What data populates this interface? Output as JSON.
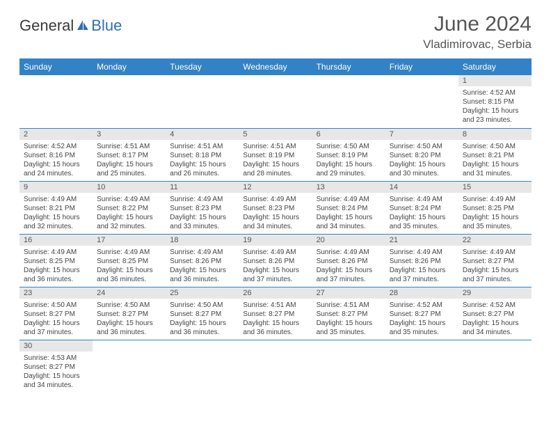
{
  "logo": {
    "dark": "General",
    "blue": "Blue"
  },
  "title": "June 2024",
  "location": "Vladimirovac, Serbia",
  "colors": {
    "header_bg": "#3182c7",
    "header_text": "#ffffff",
    "daynum_bg": "#e7e7e7",
    "row_border": "#3182c7",
    "logo_dark": "#3a3a3a",
    "logo_blue": "#2f6fb5",
    "text": "#444"
  },
  "weekdays": [
    "Sunday",
    "Monday",
    "Tuesday",
    "Wednesday",
    "Thursday",
    "Friday",
    "Saturday"
  ],
  "weeks": [
    [
      null,
      null,
      null,
      null,
      null,
      null,
      {
        "n": "1",
        "sr": "Sunrise: 4:52 AM",
        "ss": "Sunset: 8:15 PM",
        "d1": "Daylight: 15 hours",
        "d2": "and 23 minutes."
      }
    ],
    [
      {
        "n": "2",
        "sr": "Sunrise: 4:52 AM",
        "ss": "Sunset: 8:16 PM",
        "d1": "Daylight: 15 hours",
        "d2": "and 24 minutes."
      },
      {
        "n": "3",
        "sr": "Sunrise: 4:51 AM",
        "ss": "Sunset: 8:17 PM",
        "d1": "Daylight: 15 hours",
        "d2": "and 25 minutes."
      },
      {
        "n": "4",
        "sr": "Sunrise: 4:51 AM",
        "ss": "Sunset: 8:18 PM",
        "d1": "Daylight: 15 hours",
        "d2": "and 26 minutes."
      },
      {
        "n": "5",
        "sr": "Sunrise: 4:51 AM",
        "ss": "Sunset: 8:19 PM",
        "d1": "Daylight: 15 hours",
        "d2": "and 28 minutes."
      },
      {
        "n": "6",
        "sr": "Sunrise: 4:50 AM",
        "ss": "Sunset: 8:19 PM",
        "d1": "Daylight: 15 hours",
        "d2": "and 29 minutes."
      },
      {
        "n": "7",
        "sr": "Sunrise: 4:50 AM",
        "ss": "Sunset: 8:20 PM",
        "d1": "Daylight: 15 hours",
        "d2": "and 30 minutes."
      },
      {
        "n": "8",
        "sr": "Sunrise: 4:50 AM",
        "ss": "Sunset: 8:21 PM",
        "d1": "Daylight: 15 hours",
        "d2": "and 31 minutes."
      }
    ],
    [
      {
        "n": "9",
        "sr": "Sunrise: 4:49 AM",
        "ss": "Sunset: 8:21 PM",
        "d1": "Daylight: 15 hours",
        "d2": "and 32 minutes."
      },
      {
        "n": "10",
        "sr": "Sunrise: 4:49 AM",
        "ss": "Sunset: 8:22 PM",
        "d1": "Daylight: 15 hours",
        "d2": "and 32 minutes."
      },
      {
        "n": "11",
        "sr": "Sunrise: 4:49 AM",
        "ss": "Sunset: 8:23 PM",
        "d1": "Daylight: 15 hours",
        "d2": "and 33 minutes."
      },
      {
        "n": "12",
        "sr": "Sunrise: 4:49 AM",
        "ss": "Sunset: 8:23 PM",
        "d1": "Daylight: 15 hours",
        "d2": "and 34 minutes."
      },
      {
        "n": "13",
        "sr": "Sunrise: 4:49 AM",
        "ss": "Sunset: 8:24 PM",
        "d1": "Daylight: 15 hours",
        "d2": "and 34 minutes."
      },
      {
        "n": "14",
        "sr": "Sunrise: 4:49 AM",
        "ss": "Sunset: 8:24 PM",
        "d1": "Daylight: 15 hours",
        "d2": "and 35 minutes."
      },
      {
        "n": "15",
        "sr": "Sunrise: 4:49 AM",
        "ss": "Sunset: 8:25 PM",
        "d1": "Daylight: 15 hours",
        "d2": "and 35 minutes."
      }
    ],
    [
      {
        "n": "16",
        "sr": "Sunrise: 4:49 AM",
        "ss": "Sunset: 8:25 PM",
        "d1": "Daylight: 15 hours",
        "d2": "and 36 minutes."
      },
      {
        "n": "17",
        "sr": "Sunrise: 4:49 AM",
        "ss": "Sunset: 8:25 PM",
        "d1": "Daylight: 15 hours",
        "d2": "and 36 minutes."
      },
      {
        "n": "18",
        "sr": "Sunrise: 4:49 AM",
        "ss": "Sunset: 8:26 PM",
        "d1": "Daylight: 15 hours",
        "d2": "and 36 minutes."
      },
      {
        "n": "19",
        "sr": "Sunrise: 4:49 AM",
        "ss": "Sunset: 8:26 PM",
        "d1": "Daylight: 15 hours",
        "d2": "and 37 minutes."
      },
      {
        "n": "20",
        "sr": "Sunrise: 4:49 AM",
        "ss": "Sunset: 8:26 PM",
        "d1": "Daylight: 15 hours",
        "d2": "and 37 minutes."
      },
      {
        "n": "21",
        "sr": "Sunrise: 4:49 AM",
        "ss": "Sunset: 8:26 PM",
        "d1": "Daylight: 15 hours",
        "d2": "and 37 minutes."
      },
      {
        "n": "22",
        "sr": "Sunrise: 4:49 AM",
        "ss": "Sunset: 8:27 PM",
        "d1": "Daylight: 15 hours",
        "d2": "and 37 minutes."
      }
    ],
    [
      {
        "n": "23",
        "sr": "Sunrise: 4:50 AM",
        "ss": "Sunset: 8:27 PM",
        "d1": "Daylight: 15 hours",
        "d2": "and 37 minutes."
      },
      {
        "n": "24",
        "sr": "Sunrise: 4:50 AM",
        "ss": "Sunset: 8:27 PM",
        "d1": "Daylight: 15 hours",
        "d2": "and 36 minutes."
      },
      {
        "n": "25",
        "sr": "Sunrise: 4:50 AM",
        "ss": "Sunset: 8:27 PM",
        "d1": "Daylight: 15 hours",
        "d2": "and 36 minutes."
      },
      {
        "n": "26",
        "sr": "Sunrise: 4:51 AM",
        "ss": "Sunset: 8:27 PM",
        "d1": "Daylight: 15 hours",
        "d2": "and 36 minutes."
      },
      {
        "n": "27",
        "sr": "Sunrise: 4:51 AM",
        "ss": "Sunset: 8:27 PM",
        "d1": "Daylight: 15 hours",
        "d2": "and 35 minutes."
      },
      {
        "n": "28",
        "sr": "Sunrise: 4:52 AM",
        "ss": "Sunset: 8:27 PM",
        "d1": "Daylight: 15 hours",
        "d2": "and 35 minutes."
      },
      {
        "n": "29",
        "sr": "Sunrise: 4:52 AM",
        "ss": "Sunset: 8:27 PM",
        "d1": "Daylight: 15 hours",
        "d2": "and 34 minutes."
      }
    ],
    [
      {
        "n": "30",
        "sr": "Sunrise: 4:53 AM",
        "ss": "Sunset: 8:27 PM",
        "d1": "Daylight: 15 hours",
        "d2": "and 34 minutes."
      },
      null,
      null,
      null,
      null,
      null,
      null
    ]
  ]
}
